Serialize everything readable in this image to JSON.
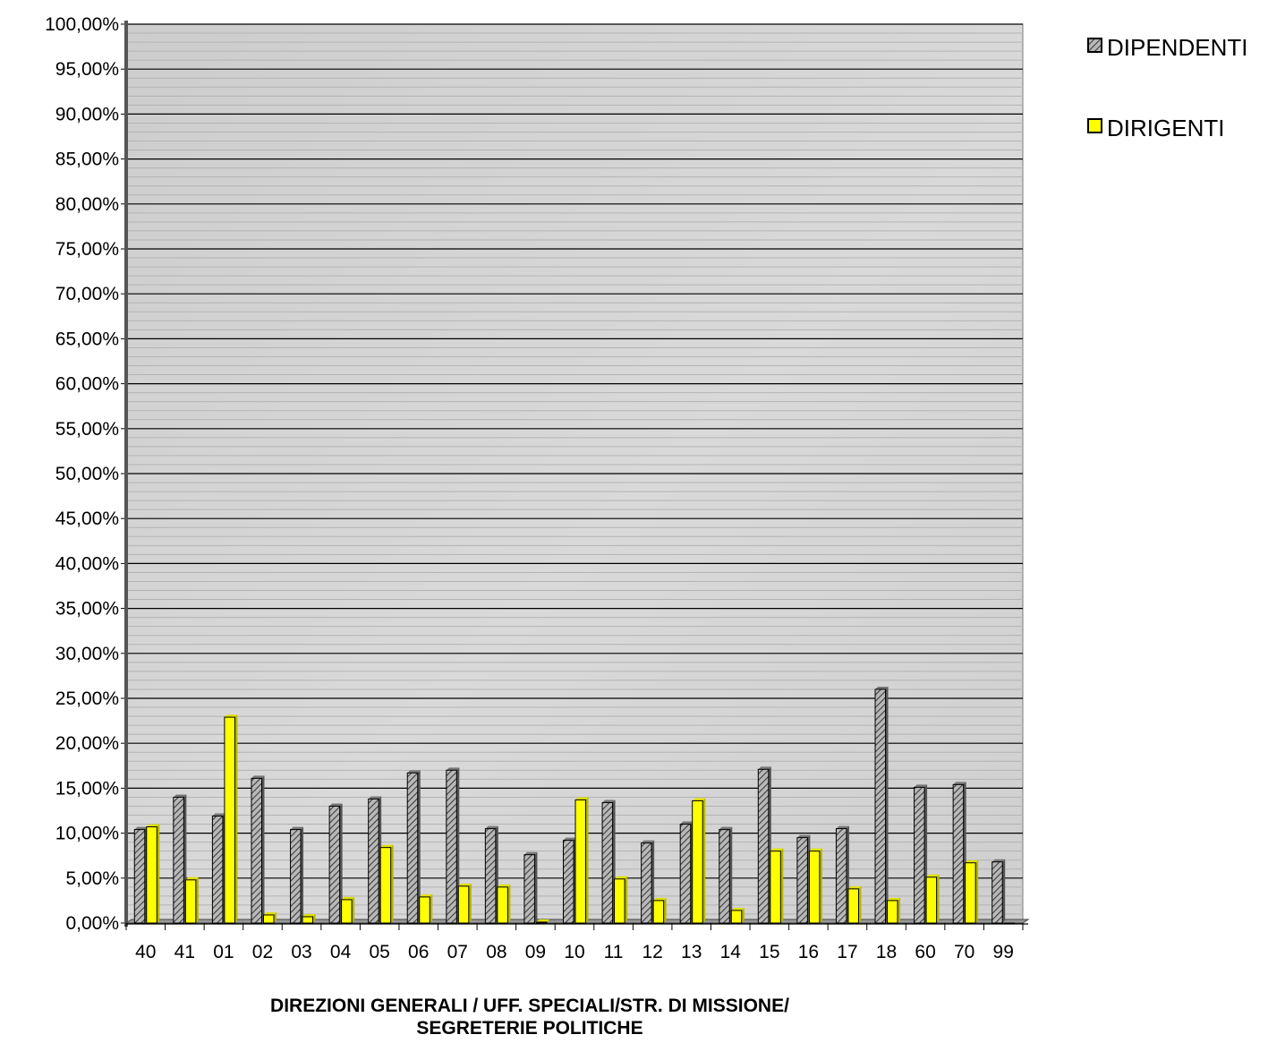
{
  "chart_data": {
    "type": "bar",
    "title": "",
    "xlabel_lines": [
      "DIREZIONI GENERALI / UFF. SPECIALI/STR. DI MISSIONE/",
      "SEGRETERIE POLITICHE"
    ],
    "ylabel": "",
    "ylim": [
      0,
      100
    ],
    "y_ticks": [
      "0,00%",
      "5,00%",
      "10,00%",
      "15,00%",
      "20,00%",
      "25,00%",
      "30,00%",
      "35,00%",
      "40,00%",
      "45,00%",
      "50,00%",
      "55,00%",
      "60,00%",
      "65,00%",
      "70,00%",
      "75,00%",
      "80,00%",
      "85,00%",
      "90,00%",
      "95,00%",
      "100,00%"
    ],
    "categories": [
      "40",
      "41",
      "01",
      "02",
      "03",
      "04",
      "05",
      "06",
      "07",
      "08",
      "09",
      "10",
      "11",
      "12",
      "13",
      "14",
      "15",
      "16",
      "17",
      "18",
      "60",
      "70",
      "99"
    ],
    "series": [
      {
        "name": "DIPENDENTI",
        "color": "#8c8c8c",
        "pattern": "diagonal-hatch",
        "values": [
          10.4,
          14.0,
          11.9,
          16.1,
          10.4,
          13.0,
          13.8,
          16.7,
          17.0,
          10.5,
          7.6,
          9.2,
          13.4,
          8.9,
          11.0,
          10.4,
          17.1,
          9.5,
          10.5,
          26.0,
          15.1,
          15.4,
          6.8
        ]
      },
      {
        "name": "DIRIGENTI",
        "color": "#ffff00",
        "pattern": "solid",
        "values": [
          10.7,
          4.8,
          22.9,
          0.9,
          0.7,
          2.6,
          8.4,
          2.9,
          4.1,
          4.0,
          0.1,
          13.7,
          4.9,
          2.5,
          13.6,
          1.4,
          8.0,
          8.0,
          3.8,
          2.5,
          5.1,
          6.7,
          0.0
        ]
      }
    ],
    "legend_position": "top-right",
    "grid": true
  }
}
